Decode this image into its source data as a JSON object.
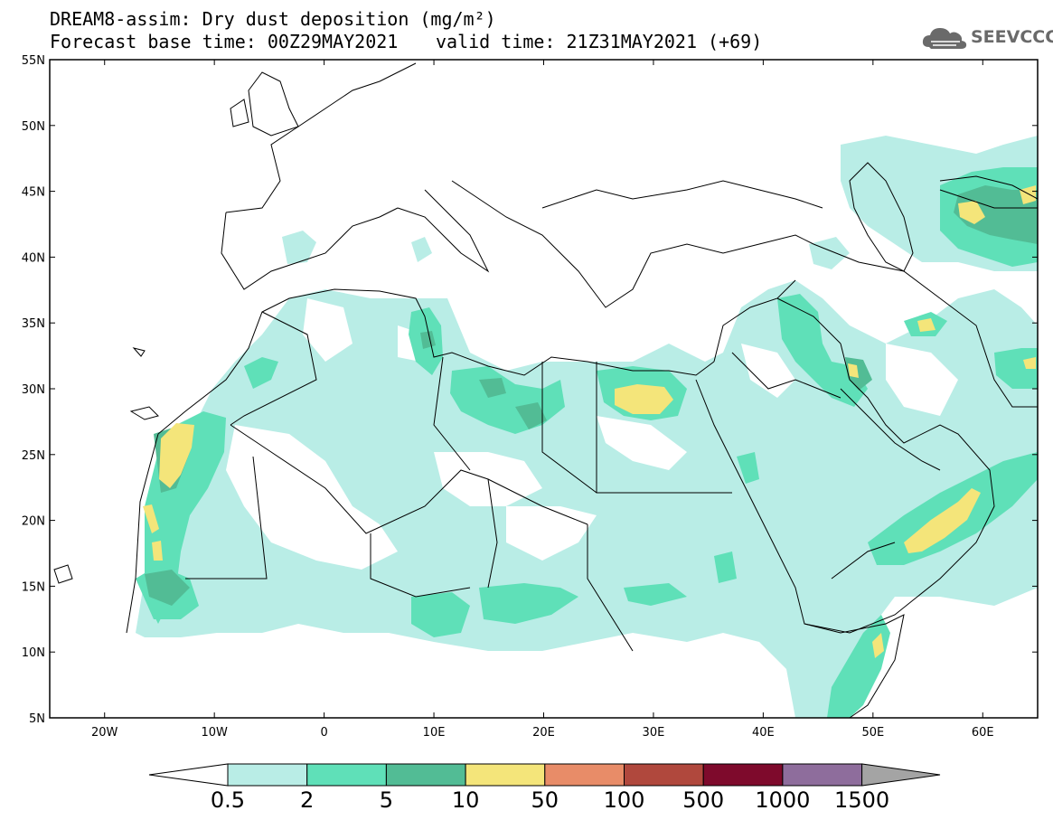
{
  "header": {
    "title": "DREAM8-assim: Dry dust deposition (mg/m²)",
    "base_time": "Forecast base time: 00Z29MAY2021",
    "valid_time": "valid time: 21Z31MAY2021 (+69)"
  },
  "logo": {
    "text": "SEEVCCC",
    "icon": "cloud-logo-icon"
  },
  "map": {
    "projection": "lat-lon",
    "lon_range": [
      -25,
      65
    ],
    "lat_range": [
      5,
      55
    ],
    "lat_labels": [
      "55N",
      "50N",
      "45N",
      "40N",
      "35N",
      "30N",
      "25N",
      "20N",
      "15N",
      "10N",
      "5N"
    ],
    "lon_labels": [
      "20W",
      "10W",
      "0",
      "10E",
      "20E",
      "30E",
      "40E",
      "50E",
      "60E"
    ]
  },
  "colorbar": {
    "labels": [
      "0.5",
      "2",
      "5",
      "10",
      "50",
      "100",
      "500",
      "1000",
      "1500"
    ],
    "colors": [
      "#b9ede6",
      "#5fe0b8",
      "#52bc95",
      "#f4e57a",
      "#e88c68",
      "#b0483d",
      "#7e0a2c",
      "#8e6d9c",
      "#a4a4a4"
    ],
    "under_color": "#ffffff"
  },
  "dust_colors": {
    "light": "#b9ede6",
    "medium": "#5fe0b8",
    "dark": "#52bc95",
    "yellow": "#f4e57a"
  }
}
